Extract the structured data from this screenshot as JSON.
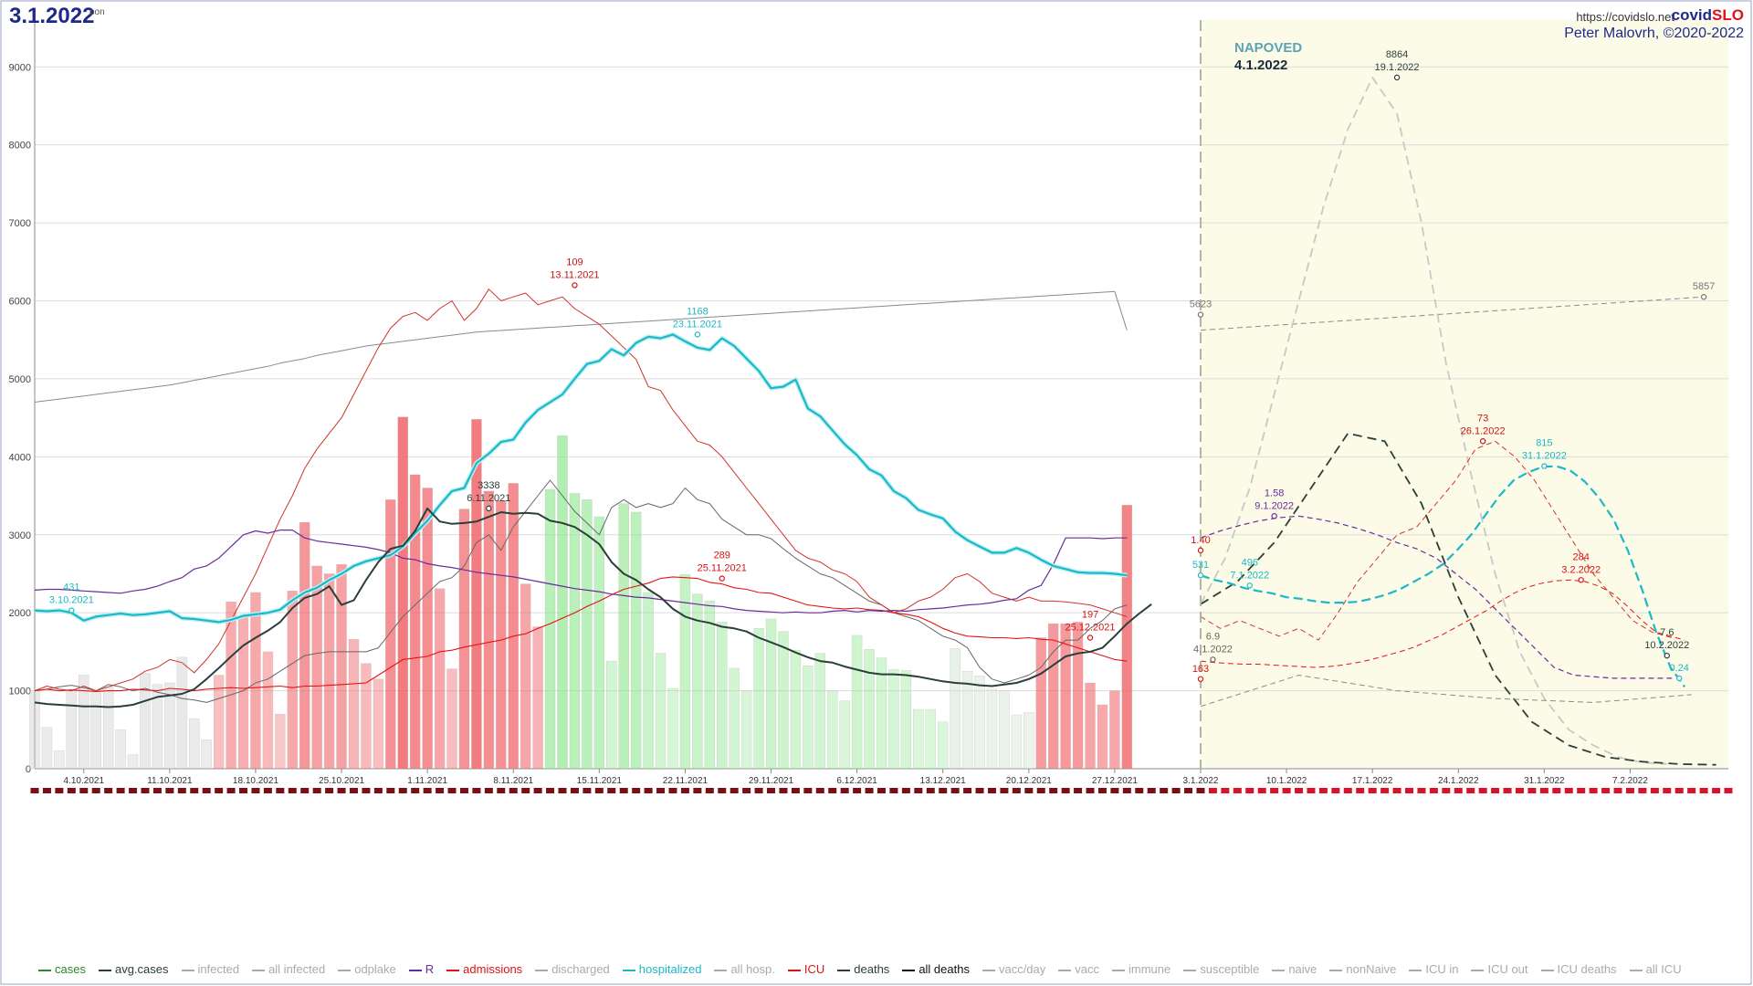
{
  "header": {
    "date": "3.1.2022",
    "day": "pon",
    "url": "https://covidslo.net",
    "brand_a": "covid",
    "brand_b": "SLO",
    "author": "Peter Malovrh, ©2020-2022"
  },
  "forecast": {
    "title": "NAPOVED",
    "date": "4.1.2022",
    "bg_color": "#fbfbe8"
  },
  "chart_data": {
    "type": "bar+line",
    "x_start": "2021-09-30",
    "x_end": "2022-02-15",
    "today": "2022-01-03",
    "ylim": [
      0,
      9600
    ],
    "yticks": [
      0,
      1000,
      2000,
      3000,
      4000,
      5000,
      6000,
      7000,
      8000,
      9000
    ],
    "xticks": [
      "4.10.2021",
      "11.10.2021",
      "18.10.2021",
      "25.10.2021",
      "1.11.2021",
      "8.11.2021",
      "15.11.2021",
      "22.11.2021",
      "29.11.2021",
      "6.12.2021",
      "13.12.2021",
      "20.12.2021",
      "27.12.2021",
      "3.1.2022",
      "10.1.2022",
      "17.1.2022",
      "24.1.2022",
      "31.1.2022",
      "7.2.2022"
    ],
    "cases": [
      1000,
      530,
      230,
      1000,
      1200,
      1000,
      1050,
      500,
      180,
      1220,
      1080,
      1100,
      1430,
      640,
      370,
      1200,
      2140,
      1960,
      2260,
      1500,
      700,
      2280,
      3160,
      2600,
      2500,
      2620,
      1660,
      1350,
      1150,
      3450,
      4510,
      3770,
      3600,
      2310,
      1280,
      3330,
      4480,
      3560,
      3440,
      3660,
      2370,
      1820,
      3580,
      4270,
      3530,
      3450,
      3230,
      1380,
      3400,
      3290,
      2260,
      1480,
      1030,
      2490,
      2240,
      2150,
      1880,
      1290,
      1000,
      1800,
      1920,
      1760,
      1520,
      1320,
      1480,
      1000,
      870,
      1710,
      1530,
      1420,
      1270,
      1260,
      760,
      760,
      600,
      1540,
      1250,
      1190,
      1020,
      1000,
      690,
      720,
      1680,
      1860,
      1860,
      1880,
      1100,
      820,
      1000,
      3380
    ],
    "avg_cases": [
      850,
      830,
      820,
      810,
      800,
      800,
      790,
      800,
      820,
      870,
      920,
      940,
      960,
      1020,
      1150,
      1290,
      1440,
      1580,
      1680,
      1770,
      1880,
      2060,
      2190,
      2240,
      2340,
      2100,
      2160,
      2420,
      2650,
      2820,
      2860,
      3050,
      3338,
      3170,
      3140,
      3150,
      3170,
      3230,
      3290,
      3270,
      3280,
      3270,
      3180,
      3150,
      3100,
      3000,
      2880,
      2650,
      2500,
      2420,
      2300,
      2200,
      2050,
      1950,
      1900,
      1870,
      1820,
      1800,
      1760,
      1680,
      1620,
      1560,
      1490,
      1430,
      1380,
      1360,
      1310,
      1270,
      1230,
      1210,
      1210,
      1200,
      1180,
      1150,
      1120,
      1100,
      1090,
      1070,
      1060,
      1080,
      1100,
      1150,
      1220,
      1330,
      1440,
      1480,
      1500,
      1550,
      1700,
      1860,
      1990,
      2110
    ],
    "hospitalized": [
      2030,
      2020,
      2030,
      2000,
      1900,
      1950,
      1970,
      1990,
      1970,
      1980,
      2000,
      2020,
      1930,
      1920,
      1900,
      1880,
      1910,
      1960,
      1980,
      2000,
      2040,
      2160,
      2260,
      2320,
      2420,
      2500,
      2600,
      2660,
      2700,
      2740,
      2850,
      3020,
      3180,
      3380,
      3560,
      3600,
      3920,
      4040,
      4190,
      4220,
      4440,
      4600,
      4700,
      4800,
      5000,
      5190,
      5230,
      5380,
      5300,
      5460,
      5540,
      5520,
      5568,
      5480,
      5400,
      5370,
      5520,
      5420,
      5260,
      5100,
      4880,
      4900,
      4990,
      4620,
      4520,
      4340,
      4160,
      4020,
      3840,
      3760,
      3560,
      3470,
      3320,
      3260,
      3210,
      3040,
      2930,
      2850,
      2770,
      2770,
      2830,
      2770,
      2680,
      2600,
      2560,
      2520,
      2510,
      2510,
      2500,
      2480
    ],
    "hospitalized_forecast": [
      2480,
      2420,
      2380,
      2320,
      2280,
      2250,
      2200,
      2180,
      2150,
      2130,
      2130,
      2140,
      2180,
      2230,
      2300,
      2400,
      2500,
      2620,
      2800,
      3000,
      3250,
      3500,
      3700,
      3800,
      3870,
      3880,
      3820,
      3680,
      3470,
      3200,
      2800,
      2300,
      1750,
      1300,
      1050
    ],
    "icu": [
      1000,
      1020,
      1000,
      1010,
      1000,
      990,
      1000,
      1000,
      1020,
      1010,
      1000,
      1030,
      1020,
      1000,
      1020,
      1030,
      1040,
      1030,
      1040,
      1050,
      1060,
      1040,
      1060,
      1060,
      1070,
      1080,
      1090,
      1100,
      1200,
      1300,
      1400,
      1420,
      1440,
      1500,
      1520,
      1560,
      1590,
      1620,
      1650,
      1700,
      1730,
      1800,
      1860,
      1930,
      2000,
      2080,
      2150,
      2230,
      2300,
      2340,
      2380,
      2440,
      2460,
      2450,
      2440,
      2390,
      2370,
      2320,
      2300,
      2260,
      2250,
      2200,
      2150,
      2100,
      2080,
      2060,
      2050,
      2060,
      2040,
      2030,
      2000,
      1980,
      1950,
      1880,
      1800,
      1740,
      1700,
      1690,
      1680,
      1680,
      1670,
      1680,
      1660,
      1650,
      1600,
      1550,
      1500,
      1450,
      1400,
      1380
    ],
    "icu_forecast": [
      1380,
      1360,
      1350,
      1340,
      1340,
      1330,
      1320,
      1310,
      1300,
      1310,
      1330,
      1360,
      1400,
      1450,
      1500,
      1560,
      1640,
      1720,
      1820,
      1920,
      2020,
      2140,
      2250,
      2330,
      2380,
      2410,
      2420,
      2400,
      2340,
      2240,
      2080,
      1900,
      1750,
      1700,
      1650
    ],
    "admissions": [
      1000,
      1060,
      1020,
      1000,
      1060,
      1000,
      1050,
      1100,
      1150,
      1250,
      1300,
      1400,
      1360,
      1230,
      1400,
      1600,
      1900,
      2200,
      2500,
      2850,
      3200,
      3500,
      3850,
      4100,
      4300,
      4500,
      4800,
      5100,
      5400,
      5650,
      5800,
      5850,
      5750,
      5900,
      6000,
      5750,
      5900,
      6150,
      6000,
      6050,
      6100,
      5950,
      6000,
      6050,
      5900,
      5800,
      5700,
      5550,
      5400,
      5250,
      4900,
      4850,
      4600,
      4400,
      4200,
      4150,
      4000,
      3800,
      3600,
      3400,
      3200,
      3000,
      2800,
      2700,
      2650,
      2550,
      2500,
      2400,
      2200,
      2100,
      2000,
      2050,
      2150,
      2200,
      2300,
      2450,
      2500,
      2400,
      2250,
      2200,
      2150,
      2200,
      2150,
      2150,
      2140,
      2120,
      2100,
      2050,
      2000,
      1950
    ],
    "admissions_forecast": [
      1950,
      1800,
      1900,
      1800,
      1700,
      1800,
      1650,
      2000,
      2400,
      2700,
      3000,
      3100,
      3400,
      3700,
      4100,
      4200,
      4000,
      3700,
      3300,
      2900,
      2500,
      2200,
      1900,
      1750,
      1680
    ],
    "r": [
      2290,
      2300,
      2300,
      2290,
      2280,
      2270,
      2260,
      2250,
      2280,
      2300,
      2340,
      2400,
      2450,
      2560,
      2600,
      2700,
      2850,
      3000,
      3050,
      3020,
      3060,
      3060,
      2960,
      2920,
      2900,
      2880,
      2860,
      2840,
      2810,
      2770,
      2700,
      2680,
      2630,
      2600,
      2580,
      2550,
      2520,
      2500,
      2480,
      2460,
      2430,
      2400,
      2370,
      2340,
      2310,
      2290,
      2270,
      2240,
      2220,
      2200,
      2190,
      2170,
      2150,
      2130,
      2110,
      2090,
      2080,
      2050,
      2030,
      2020,
      2010,
      2000,
      2010,
      2000,
      2000,
      2020,
      2030,
      2010,
      2030,
      2020,
      2030,
      2020,
      2040,
      2050,
      2060,
      2080,
      2100,
      2110,
      2130,
      2160,
      2180,
      2290,
      2350,
      2620,
      2960,
      2960,
      2960,
      2950,
      2960,
      2960
    ],
    "r_forecast": [
      2960,
      3050,
      3120,
      3180,
      3220,
      3240,
      3200,
      3150,
      3080,
      3000,
      2900,
      2820,
      2700,
      2500,
      2300,
      2050,
      1800,
      1550,
      1300,
      1200,
      1180,
      1160,
      1160,
      1160,
      1160
    ],
    "deaths": [
      1000,
      1020,
      1050,
      1070,
      1040,
      1000,
      1080,
      1050,
      1000,
      1030,
      980,
      950,
      900,
      880,
      850,
      900,
      950,
      1000,
      1100,
      1150,
      1250,
      1350,
      1450,
      1480,
      1500,
      1500,
      1500,
      1500,
      1550,
      1750,
      1950,
      2100,
      2250,
      2400,
      2450,
      2600,
      2900,
      3000,
      2800,
      3100,
      3300,
      3500,
      3700,
      3500,
      3300,
      3150,
      3000,
      3350,
      3450,
      3350,
      3400,
      3350,
      3400,
      3600,
      3450,
      3400,
      3200,
      3100,
      3000,
      3000,
      2950,
      2820,
      2700,
      2600,
      2500,
      2450,
      2350,
      2250,
      2150,
      2100,
      2000,
      1950,
      1900,
      1800,
      1700,
      1650,
      1550,
      1300,
      1150,
      1100,
      1150,
      1200,
      1300,
      1500,
      1650,
      1650,
      1800,
      1900,
      2050,
      2100
    ],
    "vacc": [
      4700,
      4720,
      4740,
      4760,
      4780,
      4800,
      4820,
      4840,
      4860,
      4880,
      4900,
      4920,
      4950,
      4980,
      5010,
      5040,
      5070,
      5100,
      5130,
      5160,
      5200,
      5230,
      5260,
      5300,
      5330,
      5360,
      5390,
      5420,
      5440,
      5460,
      5480,
      5500,
      5520,
      5540,
      5560,
      5580,
      5600,
      5610,
      5620,
      5630,
      5640,
      5650,
      5660,
      5670,
      5680,
      5690,
      5700,
      5710,
      5720,
      5730,
      5740,
      5750,
      5760,
      5770,
      5780,
      5790,
      5800,
      5810,
      5820,
      5830,
      5840,
      5850,
      5860,
      5870,
      5880,
      5890,
      5900,
      5910,
      5920,
      5930,
      5940,
      5950,
      5960,
      5970,
      5980,
      5990,
      6000,
      6010,
      6020,
      6030,
      6040,
      6050,
      6060,
      6070,
      6080,
      6090,
      6100,
      6110,
      6120,
      5623
    ],
    "cases_forecast": [
      2110,
      2700,
      3600,
      4800,
      6000,
      7200,
      8200,
      8864,
      8400,
      7000,
      5200,
      3800,
      2500,
      1500,
      900,
      500,
      300,
      150,
      80,
      60
    ],
    "deaths_forecast": [
      2110,
      2400,
      2900,
      3600,
      4300,
      4200,
      3400,
      2200,
      1200,
      600,
      300,
      150,
      90,
      60,
      50
    ],
    "annotations": [
      {
        "date": "2021-10-03",
        "value": 2030,
        "label": "431",
        "sublabel": "3.10.2021",
        "color": "#1cb8c8"
      },
      {
        "date": "2021-11-06",
        "value": 3338,
        "label": "3338",
        "sublabel": "6.11.2021",
        "color": "#2b3f3a"
      },
      {
        "date": "2021-11-13",
        "value": 6200,
        "label": "109",
        "sublabel": "13.11.2021",
        "color": "#c41414"
      },
      {
        "date": "2021-11-23",
        "value": 5568,
        "label": "1168",
        "sublabel": "23.11.2021",
        "color": "#1cb8c8"
      },
      {
        "date": "2021-11-25",
        "value": 2440,
        "label": "289",
        "sublabel": "25.11.2021",
        "color": "#d91414"
      },
      {
        "date": "2021-12-25",
        "value": 1680,
        "label": "197",
        "sublabel": "25.12.2021",
        "color": "#d91414"
      },
      {
        "date": "2022-01-03",
        "value": 2800,
        "label": "1.40",
        "sublabel": "",
        "color": "#d91414"
      },
      {
        "date": "2022-01-03",
        "value": 2480,
        "label": "531",
        "sublabel": "",
        "color": "#1cb8c8"
      },
      {
        "date": "2022-01-03",
        "value": 5823,
        "label": "5623",
        "sublabel": "",
        "color": "#777777"
      },
      {
        "date": "2022-01-04",
        "value": 1400,
        "label": "6.9",
        "sublabel": "4.1.2022",
        "color": "#666666"
      },
      {
        "date": "2022-01-03",
        "value": 1150,
        "label": "163",
        "sublabel": "",
        "color": "#d91414"
      },
      {
        "date": "2022-01-07",
        "value": 2350,
        "label": "496",
        "sublabel": "7.1.2022",
        "color": "#1cb8c8"
      },
      {
        "date": "2022-01-09",
        "value": 3240,
        "label": "1.58",
        "sublabel": "9.1.2022",
        "color": "#6a2c9a"
      },
      {
        "date": "2022-01-19",
        "value": 8864,
        "label": "8864",
        "sublabel": "19.1.2022",
        "color": "#2b3f3a"
      },
      {
        "date": "2022-01-26",
        "value": 4200,
        "label": "73",
        "sublabel": "26.1.2022",
        "color": "#c41414"
      },
      {
        "date": "2022-01-31",
        "value": 3880,
        "label": "815",
        "sublabel": "31.1.2022",
        "color": "#1cb8c8"
      },
      {
        "date": "2022-02-03",
        "value": 2420,
        "label": "284",
        "sublabel": "3.2.2022",
        "color": "#d91414"
      },
      {
        "date": "2022-02-10",
        "value": 1450,
        "label": "7.6",
        "sublabel": "10.2.2022",
        "color": "#2b3f3a"
      },
      {
        "date": "2022-02-11",
        "value": 1160,
        "label": "0.24",
        "sublabel": "",
        "color": "#1cb8c8"
      },
      {
        "date": "2022-02-13",
        "value": 6050,
        "label": "5857",
        "sublabel": "",
        "color": "#777777"
      }
    ],
    "legend": [
      {
        "label": "cases",
        "color": "#2a8a2a",
        "active": true
      },
      {
        "label": "avg.cases",
        "color": "#2b3f3a",
        "active": true
      },
      {
        "label": "infected",
        "color": "#aaaaaa",
        "active": false
      },
      {
        "label": "all infected",
        "color": "#aaaaaa",
        "active": false
      },
      {
        "label": "odplake",
        "color": "#aaaaaa",
        "active": false
      },
      {
        "label": "R",
        "color": "#6a2c9a",
        "active": true
      },
      {
        "label": "admissions",
        "color": "#d91414",
        "active": true
      },
      {
        "label": "discharged",
        "color": "#aaaaaa",
        "active": false
      },
      {
        "label": "hospitalized",
        "color": "#1cb8c8",
        "active": true
      },
      {
        "label": "all hosp.",
        "color": "#aaaaaa",
        "active": false
      },
      {
        "label": "ICU",
        "color": "#d91414",
        "active": true
      },
      {
        "label": "deaths",
        "color": "#2b3f3a",
        "active": true
      },
      {
        "label": "all deaths",
        "color": "#111111",
        "active": true
      },
      {
        "label": "vacc/day",
        "color": "#aaaaaa",
        "active": false
      },
      {
        "label": "vacc",
        "color": "#aaaaaa",
        "active": false
      },
      {
        "label": "immune",
        "color": "#aaaaaa",
        "active": false
      },
      {
        "label": "susceptible",
        "color": "#aaaaaa",
        "active": false
      },
      {
        "label": "naive",
        "color": "#aaaaaa",
        "active": false
      },
      {
        "label": "nonNaive",
        "color": "#aaaaaa",
        "active": false
      },
      {
        "label": "ICU in",
        "color": "#aaaaaa",
        "active": false
      },
      {
        "label": "ICU out",
        "color": "#aaaaaa",
        "active": false
      },
      {
        "label": "ICU deaths",
        "color": "#aaaaaa",
        "active": false
      },
      {
        "label": "all ICU",
        "color": "#aaaaaa",
        "active": false
      }
    ]
  }
}
